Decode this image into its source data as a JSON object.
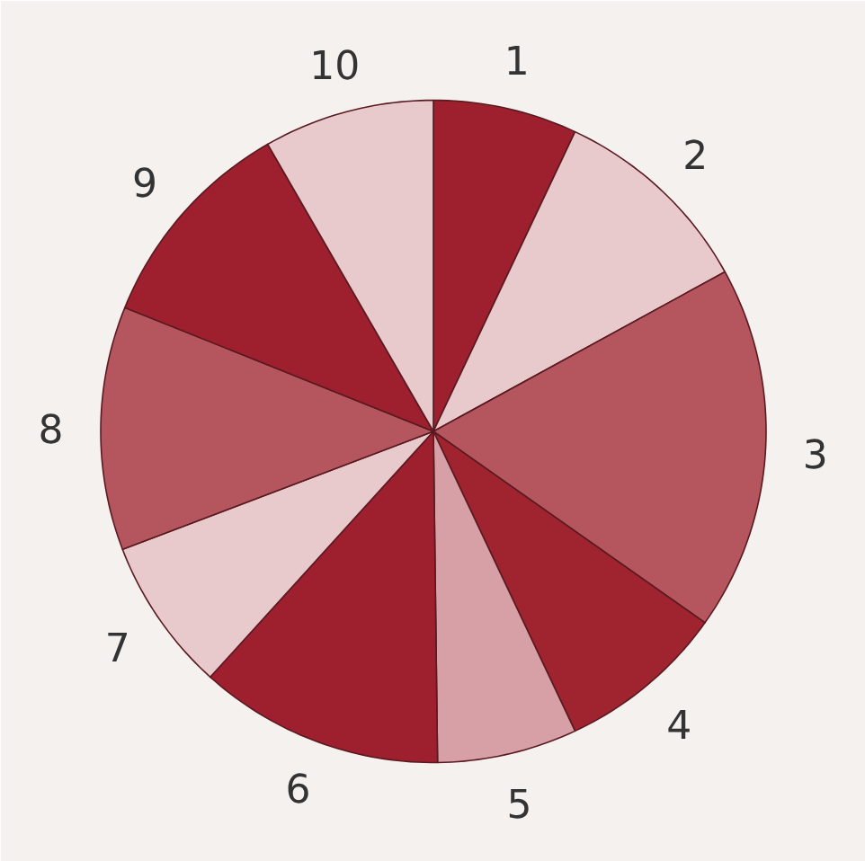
{
  "chart_data": {
    "type": "pie",
    "categories": [
      "1",
      "2",
      "3",
      "4",
      "5",
      "6",
      "7",
      "8",
      "9",
      "10"
    ],
    "values": [
      7,
      10,
      17.8,
      8.2,
      6.8,
      11.9,
      7.5,
      11.9,
      10.6,
      8.3
    ],
    "colors": [
      "#9e1f2e",
      "#e8c9cc",
      "#b5565f",
      "#a0242f",
      "#d7a0a6",
      "#9e1f2e",
      "#e8c9cc",
      "#b5565f",
      "#9e1f2e",
      "#e8c9cc"
    ]
  }
}
